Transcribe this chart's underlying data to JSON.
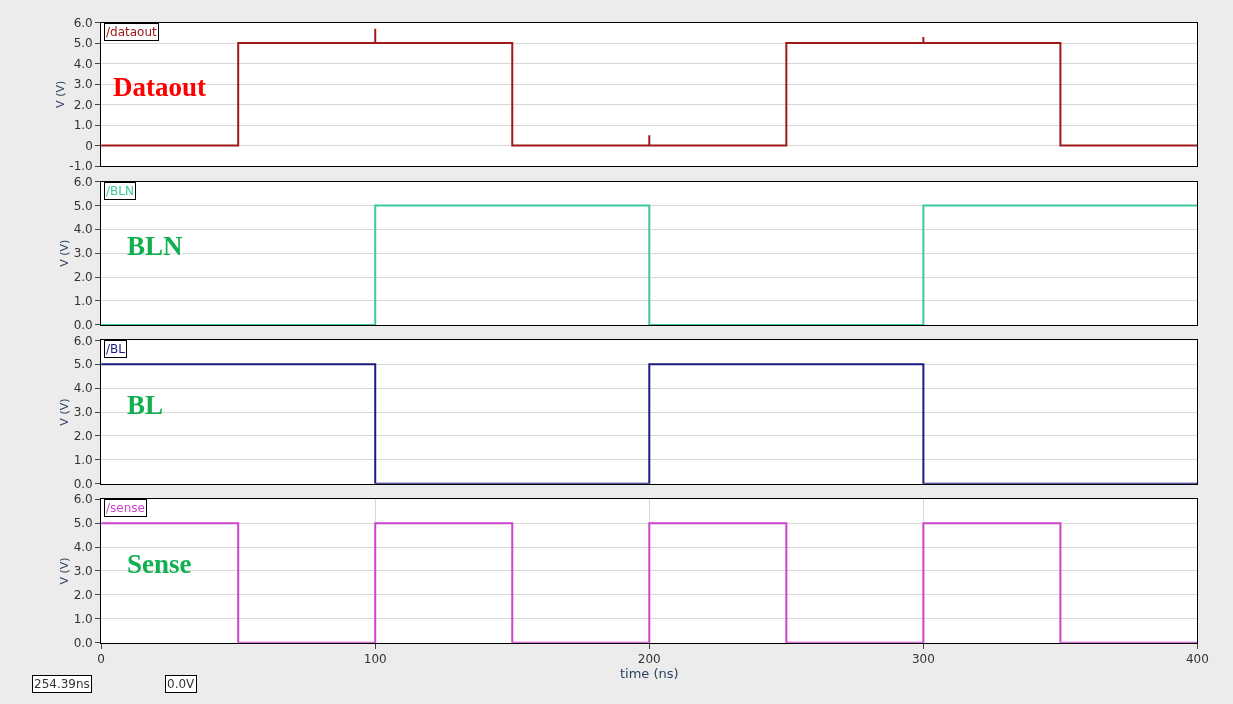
{
  "chart_data": [
    {
      "type": "line",
      "title": "/dataout",
      "ylabel": "V (V)",
      "annotations": [
        "Dataout"
      ],
      "xlim": [
        0,
        400
      ],
      "ylim": [
        -1,
        6
      ],
      "yticks": [
        {
          "value": -1,
          "label": "-1.0"
        },
        0,
        {
          "value": 1,
          "label": "1.0"
        },
        {
          "value": 2,
          "label": "2.0"
        },
        {
          "value": 3,
          "label": "3.0"
        },
        {
          "value": 4,
          "label": "4.0"
        },
        {
          "value": 5,
          "label": "5.0"
        },
        {
          "value": 6,
          "label": "6.0"
        }
      ],
      "tick_labels": "y",
      "grid": true,
      "x": [
        0,
        50,
        50,
        100,
        100,
        100,
        150,
        150,
        200,
        200,
        200,
        250,
        250,
        300,
        300,
        300,
        350,
        350,
        400
      ],
      "series": [
        {
          "color": "#a01818",
          "values": [
            0,
            0,
            5,
            5,
            5.7,
            5,
            5,
            0,
            0,
            0.5,
            0,
            0,
            5,
            5,
            5.3,
            5,
            5,
            0,
            0
          ]
        }
      ]
    },
    {
      "type": "line",
      "title": "/BLN",
      "ylabel": "V (V)",
      "annotations": [
        "BLN"
      ],
      "xlim": [
        0,
        400
      ],
      "ylim": [
        0,
        6
      ],
      "yticks": [
        {
          "value": 0,
          "label": "0.0"
        },
        {
          "value": 1,
          "label": "1.0"
        },
        {
          "value": 2,
          "label": "2.0"
        },
        {
          "value": 3,
          "label": "3.0"
        },
        {
          "value": 4,
          "label": "4.0"
        },
        {
          "value": 5,
          "label": "5.0"
        },
        {
          "value": 6,
          "label": "6.0"
        }
      ],
      "tick_labels": "y",
      "grid": true,
      "x": [
        0,
        100,
        100,
        200,
        200,
        300,
        300,
        400
      ],
      "series": [
        {
          "color": "#3cc8a0",
          "values": [
            0,
            0,
            5,
            5,
            0,
            0,
            5,
            5
          ]
        }
      ]
    },
    {
      "type": "line",
      "title": "/BL",
      "ylabel": "V (V)",
      "annotations": [
        "BL"
      ],
      "xlim": [
        0,
        400
      ],
      "ylim": [
        0,
        6
      ],
      "yticks": [
        {
          "value": 0,
          "label": "0.0"
        },
        {
          "value": 1,
          "label": "1.0"
        },
        {
          "value": 2,
          "label": "2.0"
        },
        {
          "value": 3,
          "label": "3.0"
        },
        {
          "value": 4,
          "label": "4.0"
        },
        {
          "value": 5,
          "label": "5.0"
        },
        {
          "value": 6,
          "label": "6.0"
        }
      ],
      "tick_labels": "y",
      "grid": true,
      "x": [
        0,
        100,
        100,
        200,
        200,
        300,
        300,
        400
      ],
      "series": [
        {
          "color": "#1a1a80",
          "values": [
            5,
            5,
            0,
            0,
            5,
            5,
            0,
            0
          ]
        }
      ]
    },
    {
      "type": "line",
      "title": "/sense",
      "ylabel": "V (V)",
      "xlabel": "time (ns)",
      "annotations": [
        "Sense",
        "254.39ns",
        "0.0V"
      ],
      "xlim": [
        0,
        400
      ],
      "ylim": [
        0,
        6
      ],
      "xticks": [
        0,
        100,
        200,
        300,
        400
      ],
      "yticks": [
        {
          "value": 0,
          "label": "0.0"
        },
        {
          "value": 1,
          "label": "1.0"
        },
        {
          "value": 2,
          "label": "2.0"
        },
        {
          "value": 3,
          "label": "3.0"
        },
        {
          "value": 4,
          "label": "4.0"
        },
        {
          "value": 5,
          "label": "5.0"
        },
        {
          "value": 6,
          "label": "6.0"
        }
      ],
      "grid": true,
      "x": [
        0,
        50,
        50,
        100,
        100,
        150,
        150,
        200,
        200,
        250,
        250,
        300,
        300,
        350,
        350,
        400
      ],
      "series": [
        {
          "color": "#cc44cc",
          "values": [
            5,
            5,
            0,
            0,
            5,
            5,
            0,
            0,
            5,
            5,
            0,
            0,
            5,
            5,
            0,
            0
          ]
        }
      ]
    }
  ]
}
